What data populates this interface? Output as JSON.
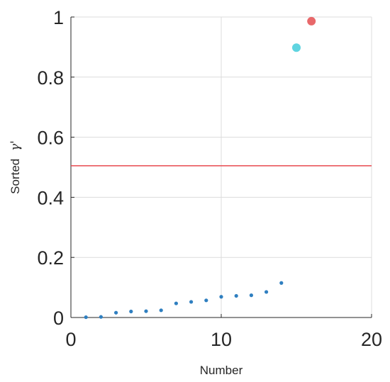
{
  "chart_data": {
    "type": "scatter",
    "title": "",
    "xlabel": "Number",
    "ylabel": "Sorted",
    "ylabel_symbol": "γ'",
    "xlim": [
      0,
      20
    ],
    "ylim": [
      0,
      1
    ],
    "xticks": [
      "0",
      "10",
      "20"
    ],
    "yticks": [
      "0",
      "0.2",
      "0.4",
      "0.6",
      "0.8",
      "1"
    ],
    "grid": true,
    "threshold_line": {
      "y": 0.505,
      "color": "#e8494f"
    },
    "series": [
      {
        "color": "#2f7fc0",
        "marker_size": "small",
        "x": [
          1,
          2,
          3,
          4,
          5,
          6,
          7,
          8,
          9,
          10,
          11,
          12,
          13,
          14
        ],
        "y": [
          0.001,
          0.002,
          0.016,
          0.02,
          0.021,
          0.024,
          0.047,
          0.052,
          0.057,
          0.069,
          0.072,
          0.074,
          0.085,
          0.115
        ]
      },
      {
        "color": "#5fd4e0",
        "marker_size": "large",
        "x": [
          15
        ],
        "y": [
          0.898
        ]
      },
      {
        "color": "#e8686a",
        "marker_size": "large",
        "x": [
          16
        ],
        "y": [
          0.986
        ]
      }
    ]
  }
}
